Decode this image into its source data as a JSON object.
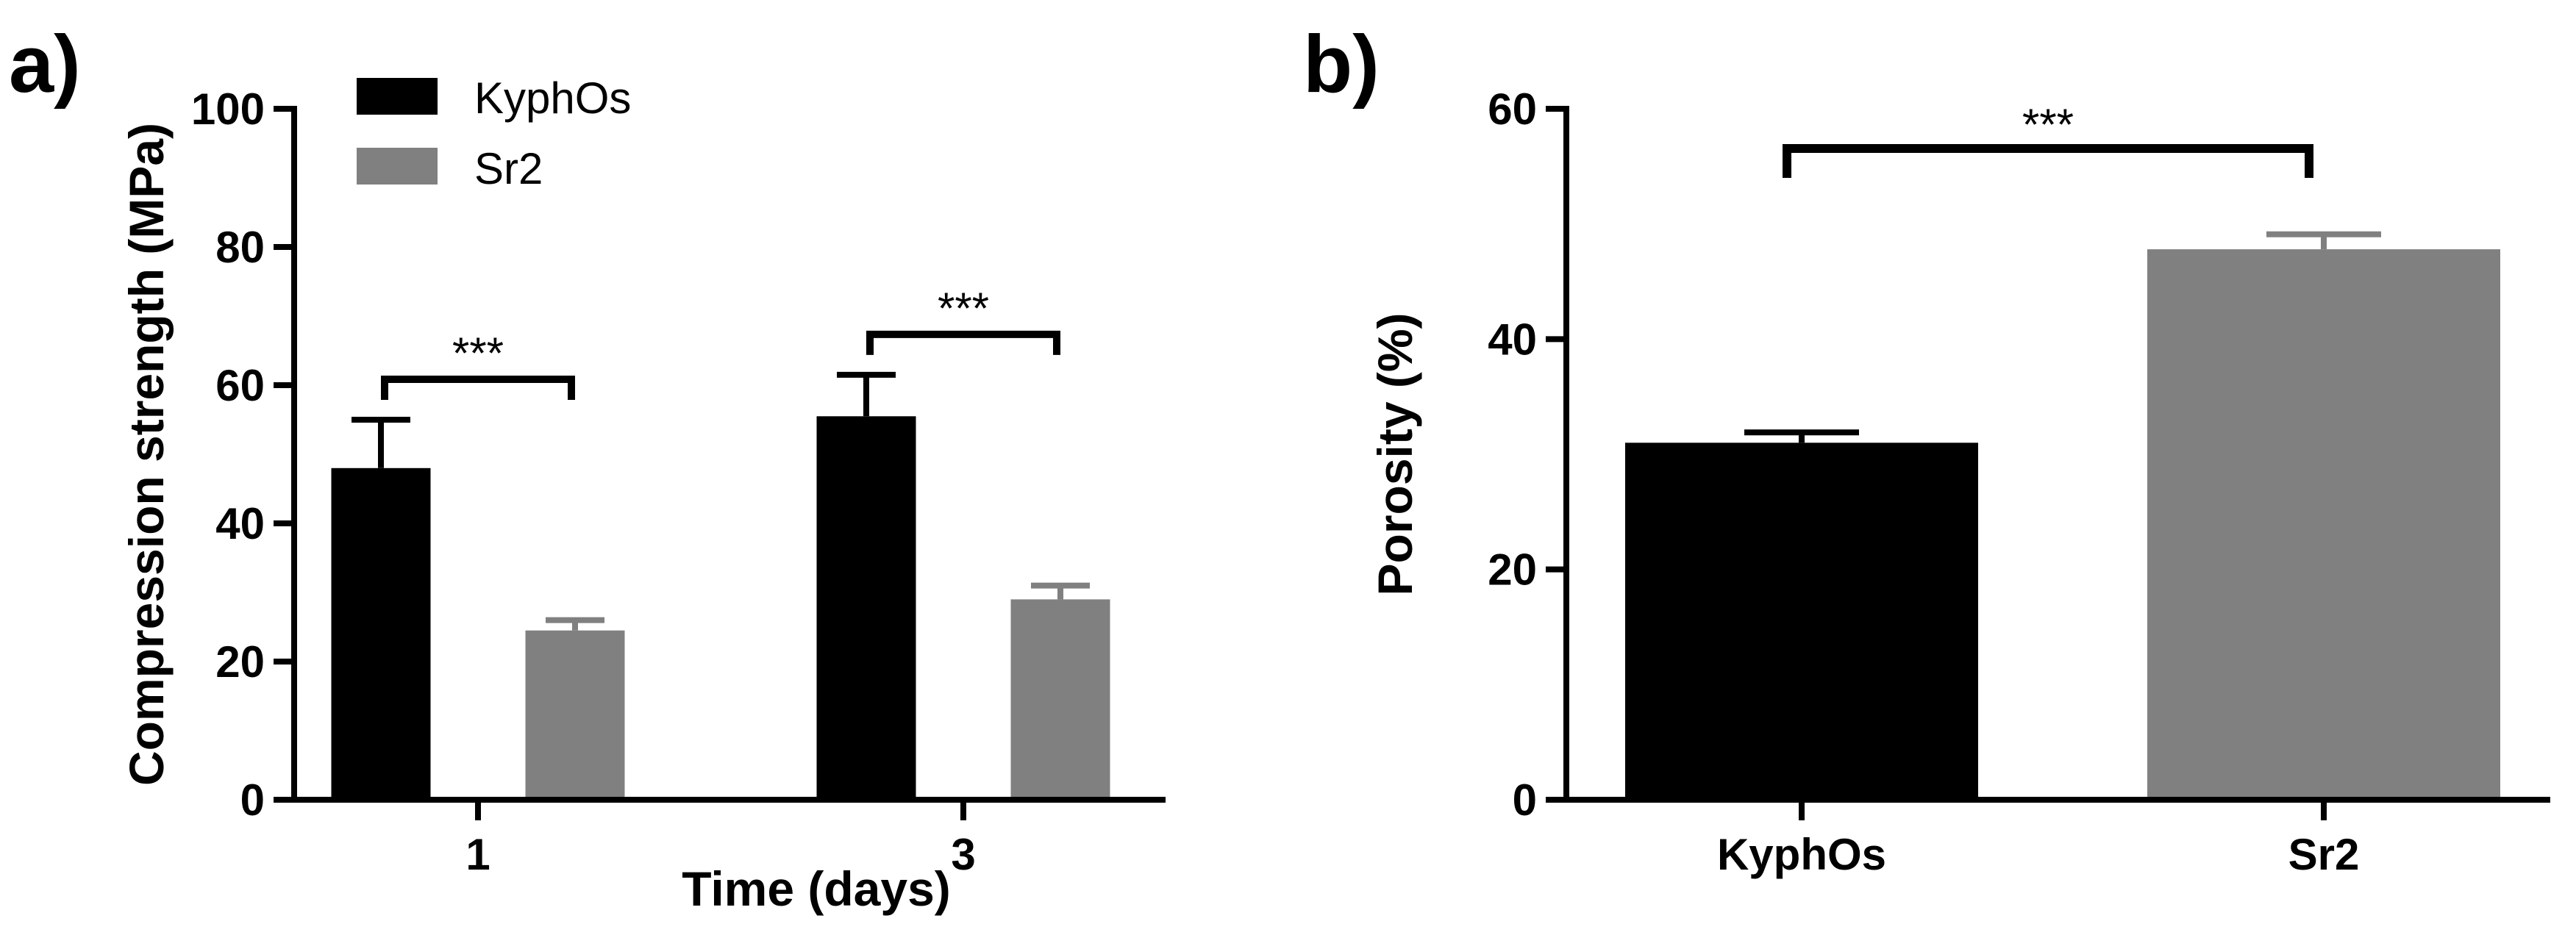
{
  "panels": {
    "a": {
      "label": "a)"
    },
    "b": {
      "label": "b)"
    }
  },
  "chart_data": [
    {
      "id": "a",
      "type": "bar",
      "xlabel": "Time (days)",
      "ylabel": "Compression strength (MPa)",
      "categories": [
        "1",
        "3"
      ],
      "ylim": [
        0,
        100
      ],
      "yticks": [
        0,
        20,
        40,
        60,
        80,
        100
      ],
      "series": [
        {
          "name": "KyphOs",
          "color": "#000000",
          "values": [
            48,
            55.5
          ],
          "errors": [
            7,
            6
          ]
        },
        {
          "name": "Sr2",
          "color": "#808080",
          "values": [
            24.5,
            29
          ],
          "errors": [
            1.5,
            2
          ]
        }
      ],
      "legend": "top-left",
      "significance": [
        {
          "category": "1",
          "text": "***"
        },
        {
          "category": "3",
          "text": "***"
        }
      ]
    },
    {
      "id": "b",
      "type": "bar",
      "xlabel": "",
      "ylabel": "Porosity (%)",
      "categories": [
        "KyphOs",
        "Sr2"
      ],
      "ylim": [
        0,
        60
      ],
      "yticks": [
        0,
        20,
        40,
        60
      ],
      "values": [
        31,
        47.8
      ],
      "errors": [
        0.9,
        1.3
      ],
      "colors": [
        "#000000",
        "#808080"
      ],
      "significance": [
        {
          "between": [
            "KyphOs",
            "Sr2"
          ],
          "text": "***"
        }
      ]
    }
  ]
}
